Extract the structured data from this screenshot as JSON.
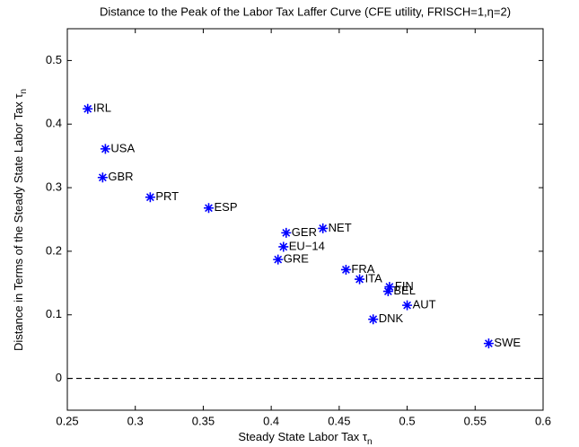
{
  "chart_data": {
    "type": "scatter",
    "title": "Distance to the Peak of the Labor Tax Laffer Curve (CFE utility, FRISCH=1,η=2)",
    "xlabel": {
      "text": "Steady State Labor Tax τ",
      "subscript": "n"
    },
    "ylabel": {
      "text": "Distance in Terms of the Steady State Labor Tax τ",
      "subscript": "n"
    },
    "labels": [
      "IRL",
      "USA",
      "GBR",
      "PRT",
      "ESP",
      "GER",
      "NET",
      "EU−14",
      "GRE",
      "FRA",
      "ITA",
      "FIN",
      "BEL",
      "AUT",
      "DNK",
      "SWE"
    ],
    "x": [
      0.265,
      0.278,
      0.276,
      0.311,
      0.354,
      0.411,
      0.438,
      0.409,
      0.405,
      0.455,
      0.465,
      0.487,
      0.486,
      0.5,
      0.475,
      0.56
    ],
    "values": [
      0.424,
      0.361,
      0.316,
      0.285,
      0.268,
      0.229,
      0.236,
      0.207,
      0.187,
      0.171,
      0.156,
      0.144,
      0.137,
      0.115,
      0.093,
      0.055
    ],
    "color": "#0000ff",
    "hline": 0,
    "xlim": [
      0.25,
      0.6
    ],
    "xticks": [
      0.25,
      0.3,
      0.35,
      0.4,
      0.45,
      0.5,
      0.55,
      0.6
    ],
    "ylim": [
      -0.05,
      0.55
    ],
    "yticks": [
      0,
      0.1,
      0.2,
      0.3,
      0.4,
      0.5
    ],
    "grid": false
  }
}
